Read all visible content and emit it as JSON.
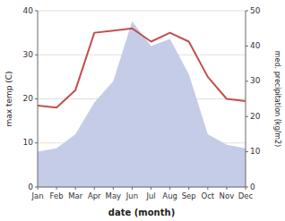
{
  "chart_data": {
    "type": "line",
    "x_label": "date (month)",
    "y_label": "max temp (C)",
    "y2_label": "med. precipitation (kg/m2)",
    "categories": [
      "Jan",
      "Feb",
      "Mar",
      "Apr",
      "May",
      "Jun",
      "Jul",
      "Aug",
      "Sep",
      "Oct",
      "Nov",
      "Dec"
    ],
    "series": [
      {
        "type": "area",
        "axis": "y2",
        "color": "#c5cce8",
        "values": [
          10,
          11,
          15,
          24,
          30,
          47,
          40,
          42,
          32,
          15,
          12,
          11
        ]
      },
      {
        "type": "line",
        "color": "#c0504d",
        "values": [
          18.5,
          18,
          22,
          35,
          35.5,
          36,
          33,
          35,
          33,
          25,
          20,
          19.5
        ]
      }
    ],
    "ylim": [
      0,
      40
    ],
    "yticks": [
      0,
      10,
      20,
      30,
      40
    ],
    "y2lim": [
      0,
      50
    ],
    "y2ticks": [
      0,
      10,
      20,
      30,
      40,
      50
    ],
    "grid": true
  }
}
